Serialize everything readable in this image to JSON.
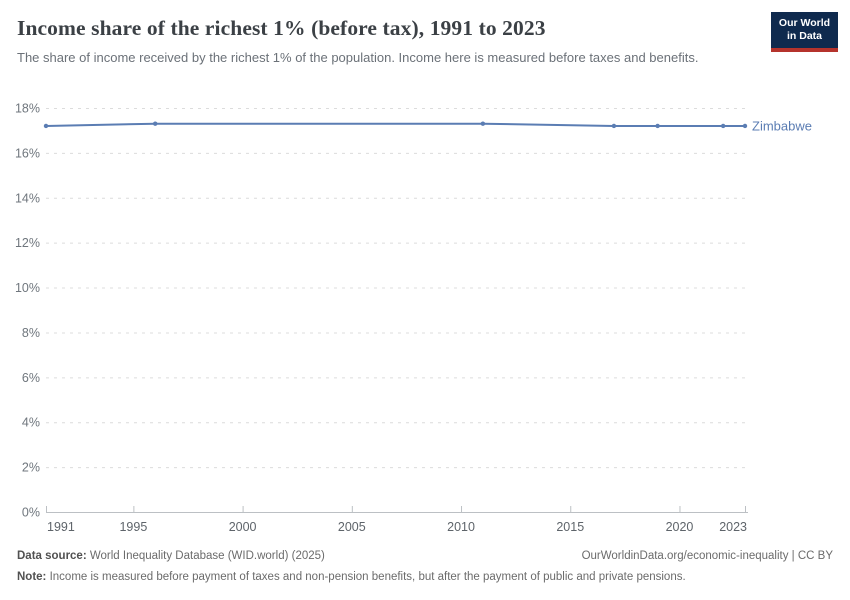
{
  "header": {
    "title": "Income share of the richest 1% (before tax), 1991 to 2023",
    "subtitle": "The share of income received by the richest 1% of the population. Income here is measured before taxes and benefits."
  },
  "logo": {
    "line1": "Our World",
    "line2": "in Data",
    "bg_color": "#0f2a4e",
    "accent_color": "#b5332c"
  },
  "chart_data": {
    "type": "line",
    "title": "Income share of the richest 1% (before tax), 1991 to 2023",
    "entity_label": "Zimbabwe",
    "x_ticks": [
      1991,
      1995,
      2000,
      2005,
      2010,
      2015,
      2020,
      2023
    ],
    "y_ticks": [
      0,
      2,
      4,
      6,
      8,
      10,
      12,
      14,
      16,
      18
    ],
    "y_unit": "%",
    "xlim": [
      1991,
      2023
    ],
    "ylim": [
      0,
      18
    ],
    "grid": "horizontal-dashed",
    "legend_position": "line-end-label",
    "colors": {
      "line": "#5b7db3",
      "grid": "#dcdcdc",
      "axis": "#bcc0c4",
      "tick_label": "#5e646a",
      "y_label": "#6f767d"
    },
    "series": [
      {
        "name": "Zimbabwe",
        "color": "#5b7db3",
        "points": [
          {
            "year": 1991,
            "value": 17.2
          },
          {
            "year": 1996,
            "value": 17.3
          },
          {
            "year": 2011,
            "value": 17.3
          },
          {
            "year": 2017,
            "value": 17.2
          },
          {
            "year": 2019,
            "value": 17.2
          },
          {
            "year": 2022,
            "value": 17.2
          },
          {
            "year": 2023,
            "value": 17.2
          }
        ]
      }
    ]
  },
  "footer": {
    "source_label": "Data source:",
    "source_text": " World Inequality Database (WID.world) (2025)",
    "credit": "OurWorldinData.org/economic-inequality | CC BY",
    "note_label": "Note:",
    "note_text": " Income is measured before payment of taxes and non-pension benefits, but after the payment of public and private pensions."
  }
}
